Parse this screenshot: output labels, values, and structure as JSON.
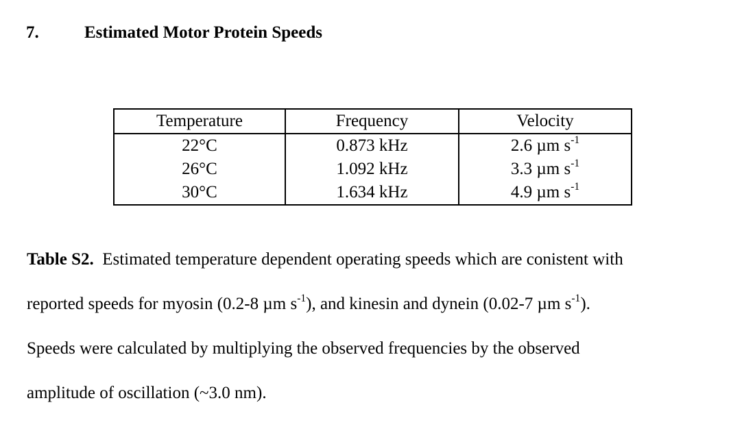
{
  "heading": {
    "number": "7.",
    "title": "Estimated Motor Protein Speeds"
  },
  "table": {
    "headers": [
      "Temperature",
      "Frequency",
      "Velocity"
    ],
    "velocity_unit": "µm s",
    "velocity_exponent": "-1",
    "rows": [
      {
        "temperature": "22°C",
        "frequency": "0.873 kHz",
        "velocity": "2.6"
      },
      {
        "temperature": "26°C",
        "frequency": "1.092 kHz",
        "velocity": "3.3"
      },
      {
        "temperature": "30°C",
        "frequency": "1.634 kHz",
        "velocity": "4.9"
      }
    ]
  },
  "caption": {
    "label": "Table S2.",
    "line1": "Estimated temperature dependent operating speeds which are conistent with",
    "line2_a": "reported speeds for myosin (0.2-8 µm s",
    "line2_b": "), and kinesin and dynein (0.02-7 µm s",
    "line2_c": ").",
    "line3": "Speeds were calculated by multiplying the observed frequencies by the observed",
    "line4": "amplitude of oscillation (~3.0 nm).",
    "exponent": "-1"
  }
}
